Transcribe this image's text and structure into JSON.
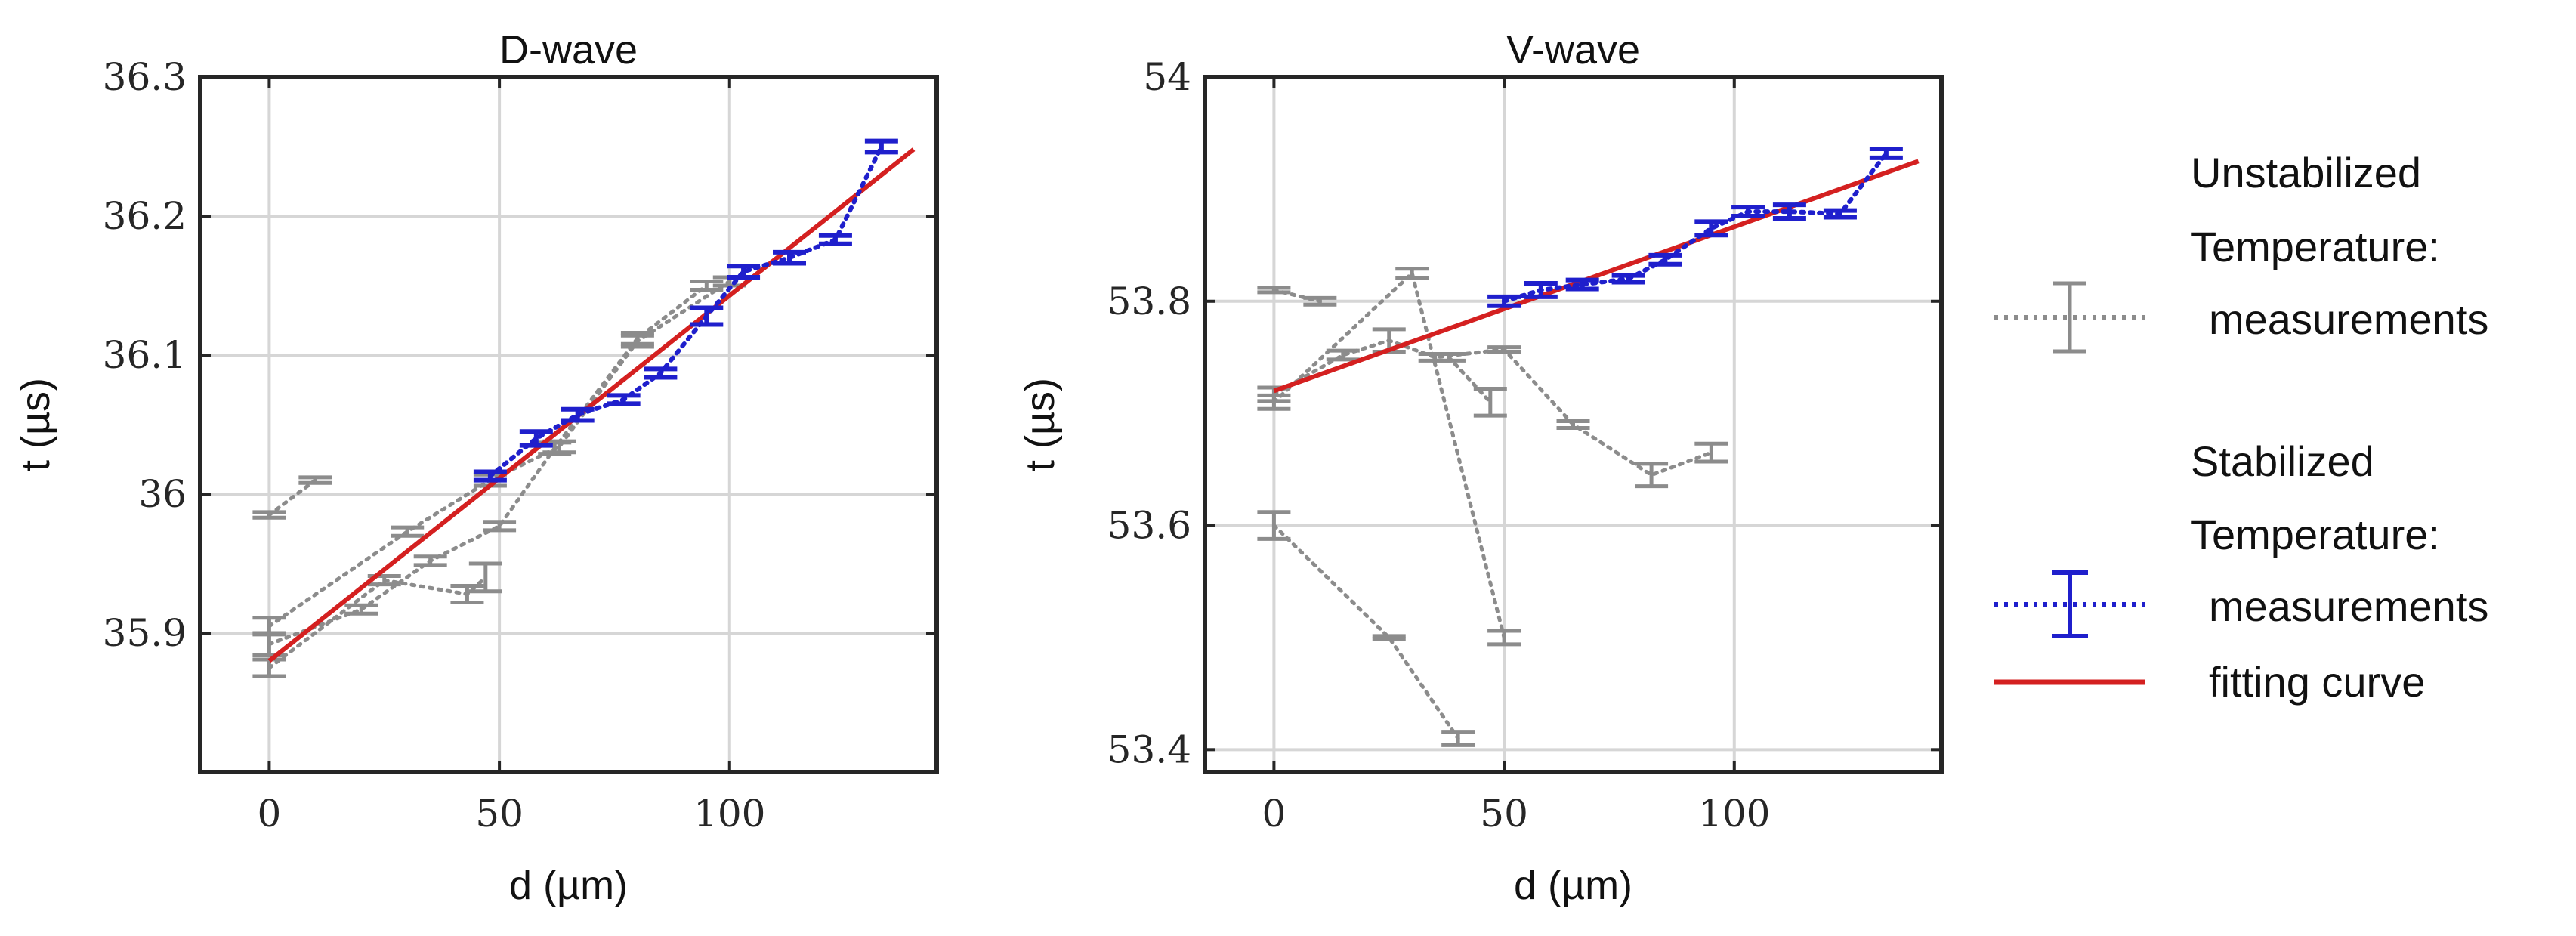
{
  "chart_data": [
    {
      "type": "scatter",
      "title": "D-wave",
      "xlabel": "d (µm)",
      "ylabel": "t (µs)",
      "xlim": [
        -15,
        145
      ],
      "ylim": [
        35.8,
        36.3
      ],
      "xticks": [
        0,
        50,
        100
      ],
      "xtick_labels": [
        "0",
        "50",
        "100"
      ],
      "yticks": [
        35.9,
        36.0,
        36.1,
        36.2,
        36.3
      ],
      "ytick_labels": [
        "35.9",
        "36",
        "36.1",
        "36.2",
        "36.3"
      ],
      "grid": true,
      "unstabilized_runs": [
        {
          "x": [
            0,
            10
          ],
          "y": [
            35.985,
            36.01
          ],
          "err": [
            0.002,
            0.002
          ]
        },
        {
          "x": [
            0,
            20,
            35,
            50,
            62,
            80,
            95
          ],
          "y": [
            35.892,
            35.917,
            35.952,
            35.977,
            36.033,
            36.112,
            36.15
          ],
          "err": [
            0.008,
            0.003,
            0.003,
            0.003,
            0.004,
            0.004,
            0.003
          ]
        },
        {
          "x": [
            0,
            30,
            48,
            63,
            80,
            100
          ],
          "y": [
            35.905,
            35.973,
            36.01,
            36.034,
            36.11,
            36.153
          ],
          "err": [
            0.006,
            0.003,
            0.004,
            0.004,
            0.004,
            0.003
          ]
        },
        {
          "x": [
            0,
            25,
            43,
            47
          ],
          "y": [
            35.875,
            35.938,
            35.928,
            35.94
          ],
          "err": [
            0.006,
            0.003,
            0.006,
            0.01
          ]
        }
      ],
      "stabilized_run": {
        "x": [
          48,
          58,
          67,
          77,
          85,
          95,
          103,
          113,
          123,
          133
        ],
        "y": [
          36.013,
          36.04,
          36.057,
          36.068,
          36.087,
          36.128,
          36.16,
          36.17,
          36.183,
          36.25
        ],
        "err": [
          0.003,
          0.005,
          0.004,
          0.003,
          0.003,
          0.006,
          0.004,
          0.004,
          0.003,
          0.004
        ]
      },
      "fit": {
        "x": [
          0,
          140
        ],
        "y": [
          35.88,
          36.248
        ]
      }
    },
    {
      "type": "scatter",
      "title": "V-wave",
      "xlabel": "d (µm)",
      "ylabel": "t (µs)",
      "xlim": [
        -15,
        145
      ],
      "ylim": [
        53.38,
        54.0
      ],
      "xticks": [
        0,
        50,
        100
      ],
      "xtick_labels": [
        "0",
        "50",
        "100"
      ],
      "yticks": [
        53.4,
        53.6,
        53.8,
        54.0
      ],
      "ytick_labels": [
        "53.4",
        "53.6",
        "53.8",
        "54"
      ],
      "grid": true,
      "unstabilized_runs": [
        {
          "x": [
            0,
            10
          ],
          "y": [
            53.81,
            53.8
          ],
          "err": [
            0.002,
            0.003
          ]
        },
        {
          "x": [
            0,
            30,
            50
          ],
          "y": [
            53.71,
            53.825,
            53.5
          ],
          "err": [
            0.006,
            0.004,
            0.006
          ]
        },
        {
          "x": [
            0,
            25,
            40
          ],
          "y": [
            53.6,
            53.5,
            53.41
          ],
          "err": [
            0.012,
            0.0,
            0.006
          ]
        },
        {
          "x": [
            0,
            15,
            25,
            35,
            50,
            65,
            82,
            95
          ],
          "y": [
            53.717,
            53.752,
            53.765,
            53.75,
            53.757,
            53.69,
            53.645,
            53.665
          ],
          "err": [
            0.006,
            0.004,
            0.01,
            0.003,
            0.002,
            0.003,
            0.01,
            0.008
          ]
        },
        {
          "x": [
            38,
            47
          ],
          "y": [
            53.75,
            53.71
          ],
          "err": [
            0.003,
            0.012
          ]
        }
      ],
      "stabilized_run": {
        "x": [
          50,
          58,
          67,
          77,
          85,
          95,
          103,
          112,
          123,
          133
        ],
        "y": [
          53.8,
          53.81,
          53.815,
          53.82,
          53.837,
          53.865,
          53.88,
          53.88,
          53.878,
          53.932
        ],
        "err": [
          0.004,
          0.006,
          0.004,
          0.003,
          0.004,
          0.006,
          0.004,
          0.006,
          0.003,
          0.004
        ]
      },
      "fit": {
        "x": [
          0,
          140
        ],
        "y": [
          53.72,
          53.925
        ]
      }
    }
  ],
  "legend": {
    "group1_line1": "Unstabilized",
    "group1_line2": "Temperature:",
    "group1_line3": "measurements",
    "group2_line1": "Stabilized",
    "group2_line2": "Temperature:",
    "group2_line3": "measurements",
    "group2_line4": "fitting curve"
  },
  "colors": {
    "unstabilized": "#8c8c8c",
    "stabilized": "#1f1fcc",
    "fit": "#d42020",
    "grid": "#d6d6d6",
    "axis": "#262626"
  }
}
